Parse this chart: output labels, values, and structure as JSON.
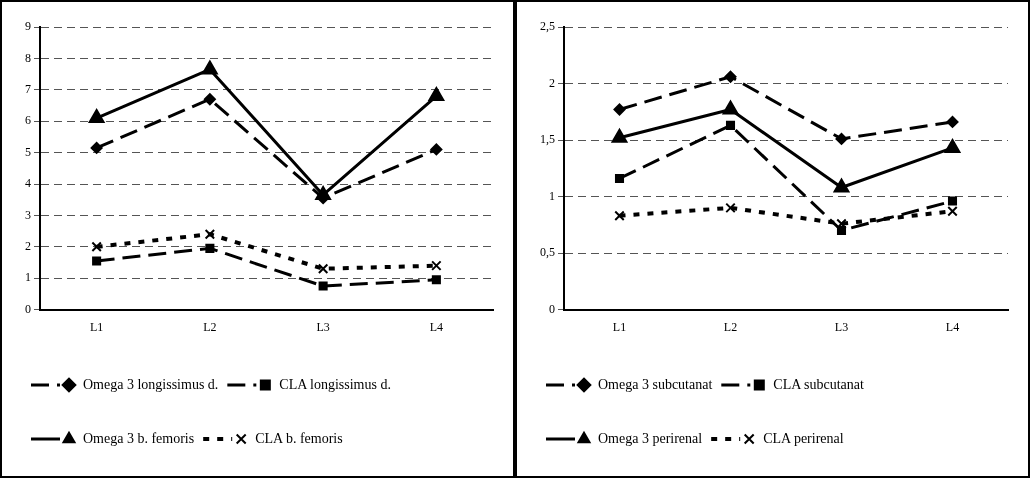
{
  "chart_data": [
    {
      "type": "line",
      "categories": [
        "L1",
        "L2",
        "L3",
        "L4"
      ],
      "ylim": [
        0,
        9
      ],
      "yticks": [
        0,
        1,
        2,
        3,
        4,
        5,
        6,
        7,
        8,
        9
      ],
      "grid": "y",
      "legend": "bottom",
      "series": [
        {
          "name": "Omega 3 longissimus d.",
          "color": "#000000",
          "marker": "diamond",
          "line_style": "dashed",
          "values": [
            5.15,
            6.7,
            3.55,
            5.1
          ]
        },
        {
          "name": "CLA longissimus d.",
          "color": "#000000",
          "marker": "square",
          "line_style": "dashed",
          "values": [
            1.55,
            1.95,
            0.75,
            0.95
          ]
        },
        {
          "name": "Omega 3 b. femoris",
          "color": "#000000",
          "marker": "triangle",
          "line_style": "solid",
          "values": [
            6.1,
            7.65,
            3.65,
            6.8
          ]
        },
        {
          "name": "CLA b. femoris",
          "color": "#000000",
          "marker": "cross",
          "line_style": "dotted",
          "values": [
            2.0,
            2.4,
            1.3,
            1.4
          ]
        }
      ]
    },
    {
      "type": "line",
      "categories": [
        "L1",
        "L2",
        "L3",
        "L4"
      ],
      "ylim": [
        0,
        2.5
      ],
      "yticks": [
        0,
        {
          "value": 0.5,
          "label": "0,5"
        },
        1,
        {
          "value": 1.5,
          "label": "1,5"
        },
        2,
        {
          "value": 2.5,
          "label": "2,5"
        }
      ],
      "grid": "y",
      "legend": "bottom",
      "series": [
        {
          "name": "Omega 3 subcutanat",
          "color": "#000000",
          "marker": "diamond",
          "line_style": "dashed",
          "values": [
            1.77,
            2.06,
            1.51,
            1.66
          ]
        },
        {
          "name": "CLA subcutanat",
          "color": "#000000",
          "marker": "square",
          "line_style": "dashed",
          "values": [
            1.16,
            1.63,
            0.7,
            0.96
          ]
        },
        {
          "name": "Omega 3 perirenal",
          "color": "#000000",
          "marker": "triangle",
          "line_style": "solid",
          "values": [
            1.52,
            1.77,
            1.08,
            1.43
          ]
        },
        {
          "name": "CLA perirenal",
          "color": "#000000",
          "marker": "cross",
          "line_style": "dotted",
          "values": [
            0.83,
            0.9,
            0.76,
            0.87
          ]
        }
      ]
    }
  ]
}
